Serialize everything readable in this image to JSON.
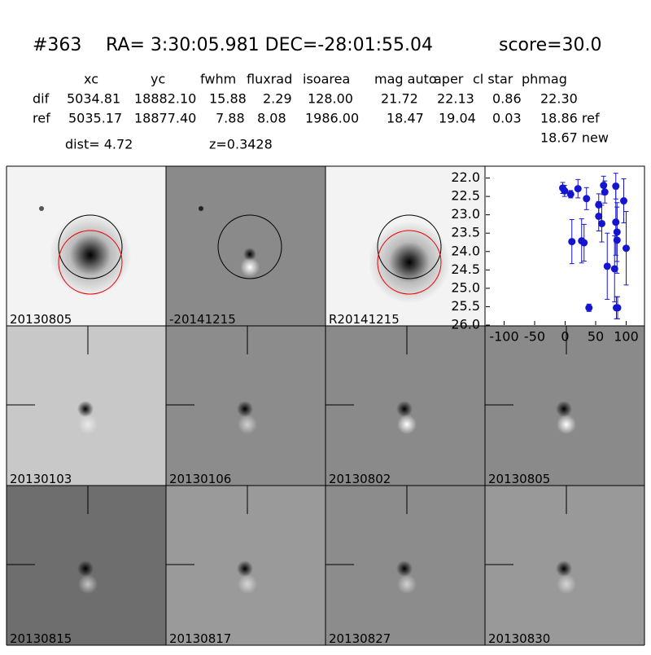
{
  "header": {
    "id": "#363",
    "coords": "RA= 3:30:05.981 DEC=-28:01:55.04",
    "score": "score=30.0"
  },
  "table": {
    "columns": [
      "xc",
      "yc",
      "fwhm",
      "fluxrad",
      "isoarea",
      "mag auto",
      "aper",
      "cl star",
      "phmag"
    ],
    "rows": [
      [
        "dif",
        "5034.81",
        "18882.10",
        "15.88",
        "2.29",
        "128.00",
        "21.72",
        "22.13",
        "0.86",
        "22.30"
      ],
      [
        "ref",
        "5035.17",
        "18877.40",
        "7.88",
        "8.08",
        "1986.00",
        "18.47",
        "19.04",
        "0.03",
        "18.86 ref"
      ]
    ],
    "extra": "18.67 new",
    "dist": "dist=  4.72",
    "z": "z=0.3428"
  },
  "panels": [
    "20130805",
    "-20141215",
    "R20141215",
    "20130103",
    "20130106",
    "20130802",
    "20130805",
    "20130815",
    "20130817",
    "20130827",
    "20130830"
  ],
  "chart_data": {
    "type": "scatter",
    "color": "#1515d0",
    "x": [
      -4,
      -1,
      9,
      21,
      35,
      63,
      65,
      83,
      96,
      55,
      55,
      60,
      11,
      27,
      31,
      83,
      85,
      85,
      69,
      81,
      100,
      39,
      84,
      86
    ],
    "values": [
      22.27,
      22.35,
      22.44,
      22.29,
      22.56,
      22.2,
      22.38,
      22.22,
      22.62,
      22.73,
      23.04,
      23.24,
      23.73,
      23.71,
      23.76,
      23.2,
      23.47,
      23.69,
      24.4,
      24.47,
      23.91,
      25.53,
      25.53,
      25.53
    ],
    "errors": [
      0.15,
      0.15,
      0.1,
      0.25,
      0.3,
      0.25,
      0.3,
      0.35,
      0.6,
      0.3,
      0.4,
      0.5,
      0.6,
      0.6,
      0.5,
      0.9,
      0.8,
      0.9,
      0.9,
      0.9,
      1.0,
      0.1,
      0.3,
      0.3
    ],
    "xlim": [
      -130,
      130
    ],
    "ylim": [
      21.7,
      26.0
    ],
    "y_inverted": true,
    "xticks": [
      -100,
      -50,
      0,
      50,
      100
    ],
    "yticks": [
      {
        "value": 22,
        "label": "22.0"
      },
      {
        "value": 22.5,
        "label": "22.5"
      },
      {
        "value": 23,
        "label": "23.0"
      },
      {
        "value": 23.5,
        "label": "23.5"
      },
      {
        "value": 24,
        "label": "24.0"
      },
      {
        "value": 24.5,
        "label": "24.5"
      },
      {
        "value": 25,
        "label": "25.0"
      },
      {
        "value": 25.5,
        "label": "25.5"
      },
      {
        "value": 26,
        "label": "26.0"
      }
    ]
  }
}
